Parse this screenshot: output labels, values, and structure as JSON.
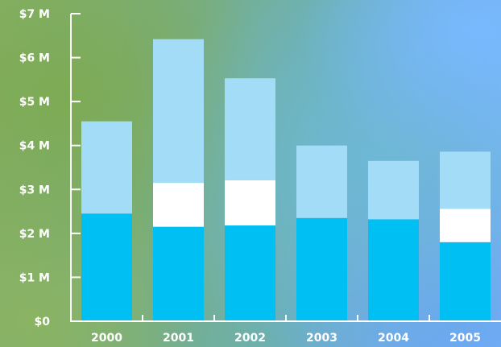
{
  "chart_data": {
    "type": "bar",
    "stacked": true,
    "categories": [
      "2000",
      "2001",
      "2002",
      "2003",
      "2004",
      "2005"
    ],
    "series": [
      {
        "color": "#00bff2",
        "values": [
          2.45,
          2.15,
          2.18,
          2.35,
          2.32,
          1.8
        ]
      },
      {
        "color": "#ffffff",
        "values": [
          0,
          1.0,
          1.03,
          0,
          0,
          0.76
        ]
      },
      {
        "color": "#a3dcf7",
        "values": [
          2.1,
          3.27,
          2.32,
          1.65,
          1.33,
          1.3
        ]
      }
    ],
    "y_tick_labels": [
      "$0",
      "$1 M",
      "$2 M",
      "$3 M",
      "$4 M",
      "$5 M",
      "$6 M",
      "$7 M"
    ],
    "ylim": [
      0,
      7
    ],
    "grid": false,
    "axis_color": "#ffffff"
  }
}
